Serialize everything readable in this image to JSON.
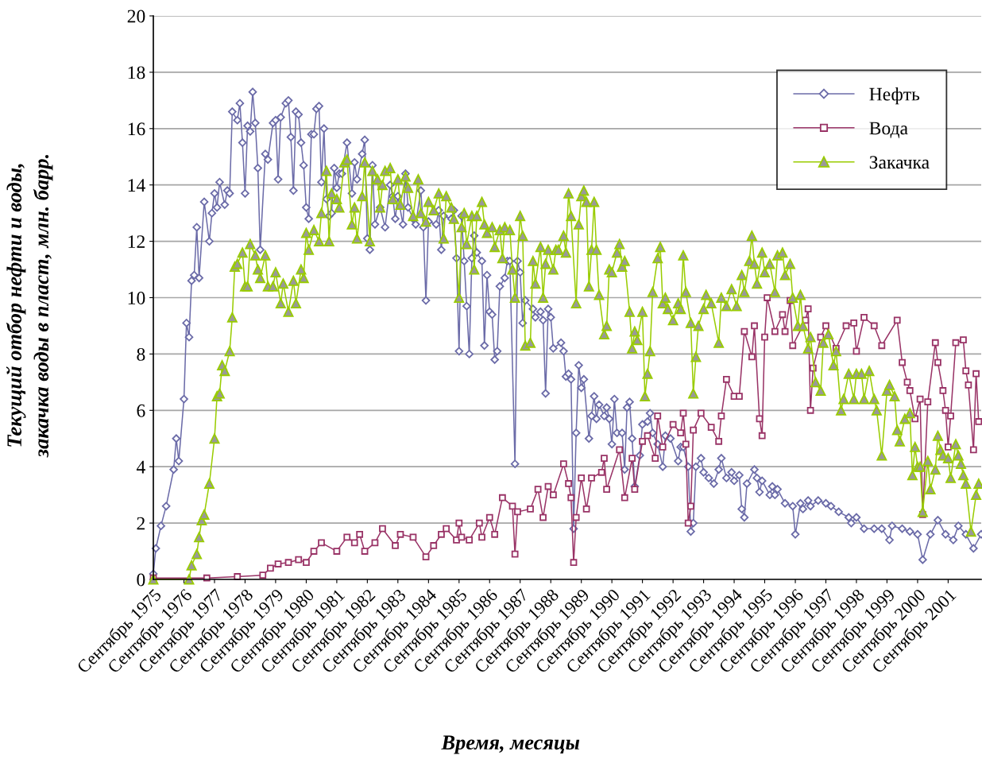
{
  "chart_data": {
    "type": "line",
    "xlabel": "Время, месяцы",
    "ylabel": "Текущий отбор нефти и воды,\nзакачка воды в пласт, млн. барр.",
    "xlim": [
      "1975-09",
      "2002-10"
    ],
    "ylim": [
      0,
      20
    ],
    "yticks": [
      0,
      2,
      4,
      6,
      8,
      10,
      12,
      14,
      16,
      18,
      20
    ],
    "xticks": [
      {
        "value": "1975-09",
        "label": "Сентябрь 1975"
      },
      {
        "value": "1976-09",
        "label": "Сентябрь 1976"
      },
      {
        "value": "1977-09",
        "label": "Сентябрь 1977"
      },
      {
        "value": "1978-09",
        "label": "Сентябрь 1978"
      },
      {
        "value": "1979-09",
        "label": "Сентябрь 1979"
      },
      {
        "value": "1980-09",
        "label": "Сентябрь 1980"
      },
      {
        "value": "1981-09",
        "label": "Сентябрь 1981"
      },
      {
        "value": "1982-09",
        "label": "Сентябрь 1982"
      },
      {
        "value": "1983-09",
        "label": "Сентябрь 1983"
      },
      {
        "value": "1984-09",
        "label": "Сентябрь 1984"
      },
      {
        "value": "1985-09",
        "label": "Сентябрь 1985"
      },
      {
        "value": "1986-09",
        "label": "Сентябрь 1986"
      },
      {
        "value": "1987-09",
        "label": "Сентябрь 1987"
      },
      {
        "value": "1988-09",
        "label": "Сентябрь 1988"
      },
      {
        "value": "1989-09",
        "label": "Сентябрь 1989"
      },
      {
        "value": "1990-09",
        "label": "Сентябрь 1990"
      },
      {
        "value": "1991-09",
        "label": "Сентябрь 1991"
      },
      {
        "value": "1992-09",
        "label": "Сентябрь 1992"
      },
      {
        "value": "1993-09",
        "label": "Сентябрь 1993"
      },
      {
        "value": "1994-09",
        "label": "Сентябрь 1994"
      },
      {
        "value": "1995-09",
        "label": "Сентябрь 1995"
      },
      {
        "value": "1996-09",
        "label": "Сентябрь 1996"
      },
      {
        "value": "1997-09",
        "label": "Сентябрь 1997"
      },
      {
        "value": "1998-09",
        "label": "Сентябрь 1998"
      },
      {
        "value": "1999-09",
        "label": "Сентябрь 1999"
      },
      {
        "value": "2000-09",
        "label": "Сентябрь 2000"
      },
      {
        "value": "2001-09",
        "label": "Сентябрь 2001"
      }
    ],
    "grid": "y",
    "legend": "top right",
    "line_style": "solid",
    "series": [
      {
        "name": "Нефть",
        "color": "#6b6ba8",
        "marker": "diamond",
        "x": [
          "1975-09",
          "1975-10",
          "1975-12",
          "1976-02",
          "1976-05",
          "1976-06",
          "1976-07",
          "1976-09",
          "1976-10",
          "1976-11",
          "1976-12",
          "1977-01",
          "1977-02",
          "1977-03",
          "1977-05",
          "1977-07",
          "1977-08",
          "1977-09",
          "1977-10",
          "1977-11",
          "1978-01",
          "1978-02",
          "1978-03",
          "1978-04",
          "1978-06",
          "1978-07",
          "1978-08",
          "1978-09",
          "1978-10",
          "1978-11",
          "1978-12",
          "1979-01",
          "1979-02",
          "1979-03",
          "1979-05",
          "1979-06",
          "1979-08",
          "1979-09",
          "1979-10",
          "1979-11",
          "1980-01",
          "1980-02",
          "1980-03",
          "1980-04",
          "1980-05",
          "1980-06",
          "1980-07",
          "1980-08",
          "1980-09",
          "1980-10",
          "1980-11",
          "1980-12",
          "1981-01",
          "1981-02",
          "1981-03",
          "1981-04",
          "1981-05",
          "1981-06",
          "1981-07",
          "1981-08",
          "1981-09",
          "1981-10",
          "1981-11",
          "1982-01",
          "1982-03",
          "1982-04",
          "1982-05",
          "1982-07",
          "1982-08",
          "1982-09",
          "1982-10",
          "1982-11",
          "1982-12",
          "1983-02",
          "1983-04",
          "1983-06",
          "1983-07",
          "1983-08",
          "1983-09",
          "1983-11",
          "1983-12",
          "1984-01",
          "1984-03",
          "1984-04",
          "1984-06",
          "1984-07",
          "1984-08",
          "1984-09",
          "1984-12",
          "1985-01",
          "1985-02",
          "1985-03",
          "1985-06",
          "1985-07",
          "1985-08",
          "1985-09",
          "1985-10",
          "1985-11",
          "1985-12",
          "1986-01",
          "1986-02",
          "1986-03",
          "1986-04",
          "1986-06",
          "1986-07",
          "1986-08",
          "1986-09",
          "1986-10",
          "1986-11",
          "1986-12",
          "1987-01",
          "1987-03",
          "1987-04",
          "1987-05",
          "1987-07",
          "1987-08",
          "1987-09",
          "1987-10",
          "1987-11",
          "1988-02",
          "1988-03",
          "1988-05",
          "1988-06",
          "1988-07",
          "1988-08",
          "1988-09",
          "1988-10",
          "1989-01",
          "1989-02",
          "1989-03",
          "1989-04",
          "1989-05",
          "1989-06",
          "1989-07",
          "1989-08",
          "1989-09",
          "1989-10",
          "1989-12",
          "1990-01",
          "1990-02",
          "1990-03",
          "1990-04",
          "1990-06",
          "1990-07",
          "1990-08",
          "1990-09",
          "1990-10",
          "1990-11",
          "1991-01",
          "1991-02",
          "1991-03",
          "1991-04",
          "1991-05",
          "1991-06",
          "1991-08",
          "1991-09",
          "1991-11",
          "1991-12",
          "1992-01",
          "1992-03",
          "1992-05",
          "1992-06",
          "1992-08",
          "1992-11",
          "1992-12",
          "1993-01",
          "1993-03",
          "1993-04",
          "1993-05",
          "1993-06",
          "1993-08",
          "1993-09",
          "1993-11",
          "1994-01",
          "1994-03",
          "1994-04",
          "1994-06",
          "1994-08",
          "1994-09",
          "1994-11",
          "1994-12",
          "1995-01",
          "1995-02",
          "1995-05",
          "1995-06",
          "1995-07",
          "1995-08",
          "1995-11",
          "1995-12",
          "1996-01",
          "1996-02",
          "1996-05",
          "1996-08",
          "1996-09",
          "1996-11",
          "1996-12",
          "1997-02",
          "1997-03",
          "1997-06",
          "1997-09",
          "1997-11",
          "1998-02",
          "1998-06",
          "1998-07",
          "1998-09",
          "1998-12",
          "1999-04",
          "1999-07",
          "1999-10",
          "1999-11",
          "2000-03",
          "2000-06",
          "2000-09",
          "2000-11",
          "2001-02",
          "2001-05",
          "2001-08",
          "2001-11",
          "2002-01",
          "2002-04",
          "2002-07",
          "2002-10"
        ],
        "values": [
          0.2,
          1.1,
          1.9,
          2.6,
          3.9,
          5.0,
          4.2,
          6.4,
          9.1,
          8.6,
          10.6,
          10.8,
          12.5,
          10.7,
          13.4,
          12.0,
          13.0,
          13.7,
          13.2,
          14.1,
          13.3,
          13.8,
          13.7,
          16.6,
          16.3,
          16.9,
          15.5,
          13.7,
          16.1,
          15.9,
          17.3,
          16.2,
          14.6,
          11.7,
          15.1,
          14.9,
          16.2,
          16.3,
          14.2,
          16.4,
          16.9,
          17.0,
          15.7,
          13.8,
          16.6,
          16.5,
          15.5,
          14.7,
          13.2,
          12.8,
          15.8,
          15.8,
          16.7,
          16.8,
          14.1,
          16.0,
          13.5,
          12.9,
          13.0,
          14.6,
          13.9,
          14.4,
          14.4,
          15.5,
          13.7,
          14.8,
          14.2,
          15.1,
          15.6,
          12.1,
          11.7,
          14.7,
          12.6,
          13.2,
          12.5,
          14.0,
          13.6,
          12.8,
          13.6,
          12.6,
          14.4,
          13.2,
          12.8,
          12.6,
          13.8,
          12.5,
          9.9,
          12.7,
          12.6,
          13.1,
          11.7,
          12.9,
          12.8,
          13.1,
          11.4,
          8.1,
          12.9,
          11.3,
          9.7,
          8.0,
          11.4,
          12.2,
          11.6,
          11.3,
          8.3,
          10.8,
          9.5,
          9.4,
          7.8,
          8.1,
          10.4,
          10.7,
          11.3,
          11.3,
          4.1,
          11.3,
          10.9,
          9.1,
          9.9,
          9.6,
          9.3,
          9.5,
          9.2,
          6.6,
          9.6,
          9.3,
          8.2,
          8.4,
          8.1,
          7.2,
          7.3,
          7.1,
          1.8,
          5.2,
          7.6,
          6.8,
          7.1,
          5.0,
          5.8,
          6.5,
          5.7,
          6.2,
          5.8,
          6.1,
          5.7,
          4.8,
          6.4,
          5.2,
          5.2,
          3.9,
          6.1,
          6.3,
          5.0,
          3.3,
          4.4,
          5.5,
          5.6,
          5.9,
          5.2,
          4.8,
          4.0,
          5.1,
          5.0,
          4.2,
          4.7,
          4.7,
          4.0,
          1.7,
          2.0,
          4.0,
          4.3,
          3.8,
          3.6,
          3.4,
          3.9,
          4.3,
          3.6,
          3.8,
          3.5,
          3.7,
          2.5,
          2.2,
          3.4,
          3.9,
          3.6,
          3.1,
          3.5,
          3.0,
          3.3,
          3.0,
          3.2,
          2.7,
          2.6,
          1.6,
          2.7,
          2.5,
          2.8,
          2.6,
          2.8,
          2.7,
          2.6,
          2.4,
          2.2,
          2.0,
          2.2,
          1.8,
          1.8,
          1.8,
          1.4,
          1.9,
          1.8,
          1.7,
          1.6,
          0.7,
          1.6,
          2.1,
          1.6,
          1.4,
          1.9,
          1.6,
          1.1,
          1.6
        ]
      },
      {
        "name": "Вода",
        "color": "#993366",
        "marker": "square",
        "x": [
          "1975-09",
          "1977-06",
          "1978-06",
          "1979-04",
          "1979-07",
          "1979-10",
          "1980-02",
          "1980-06",
          "1980-09",
          "1980-12",
          "1981-03",
          "1981-09",
          "1982-01",
          "1982-04",
          "1982-06",
          "1982-08",
          "1982-12",
          "1983-03",
          "1983-08",
          "1983-10",
          "1984-03",
          "1984-08",
          "1984-11",
          "1985-02",
          "1985-04",
          "1985-08",
          "1985-09",
          "1985-10",
          "1986-01",
          "1986-05",
          "1986-06",
          "1986-09",
          "1986-11",
          "1987-02",
          "1987-06",
          "1987-07",
          "1987-08",
          "1988-01",
          "1988-04",
          "1988-06",
          "1988-08",
          "1988-10",
          "1989-02",
          "1989-04",
          "1989-05",
          "1989-06",
          "1989-07",
          "1989-09",
          "1989-11",
          "1990-01",
          "1990-05",
          "1990-06",
          "1990-07",
          "1990-12",
          "1991-02",
          "1991-05",
          "1991-06",
          "1991-09",
          "1991-11",
          "1992-02",
          "1992-03",
          "1992-05",
          "1992-09",
          "1992-12",
          "1993-01",
          "1993-02",
          "1993-03",
          "1993-04",
          "1993-05",
          "1993-08",
          "1993-12",
          "1994-03",
          "1994-04",
          "1994-06",
          "1994-09",
          "1994-11",
          "1995-01",
          "1995-04",
          "1995-05",
          "1995-07",
          "1995-08",
          "1995-09",
          "1995-10",
          "1996-01",
          "1996-04",
          "1996-05",
          "1996-07",
          "1996-08",
          "1997-01",
          "1997-02",
          "1997-03",
          "1997-04",
          "1997-07",
          "1997-09",
          "1998-01",
          "1998-05",
          "1998-08",
          "1998-09",
          "1998-12",
          "1999-04",
          "1999-07",
          "2000-01",
          "2000-03",
          "2000-05",
          "2000-06",
          "2000-08",
          "2000-10",
          "2000-11",
          "2001-01",
          "2001-04",
          "2001-05",
          "2001-07",
          "2001-08",
          "2001-09",
          "2001-10",
          "2001-12",
          "2002-03",
          "2002-04",
          "2002-05",
          "2002-07",
          "2002-08",
          "2002-09"
        ],
        "values": [
          0.05,
          0.05,
          0.1,
          0.15,
          0.4,
          0.55,
          0.6,
          0.7,
          0.6,
          1.0,
          1.3,
          1.0,
          1.5,
          1.3,
          1.6,
          1.0,
          1.3,
          1.8,
          1.2,
          1.6,
          1.5,
          0.8,
          1.2,
          1.6,
          1.8,
          1.4,
          2.0,
          1.5,
          1.4,
          2.0,
          1.5,
          2.2,
          1.6,
          2.9,
          2.6,
          0.9,
          2.4,
          2.5,
          3.2,
          2.2,
          3.3,
          3.0,
          4.1,
          3.4,
          2.9,
          0.6,
          2.2,
          3.6,
          2.5,
          3.6,
          3.8,
          4.3,
          3.2,
          4.6,
          2.9,
          4.3,
          3.2,
          4.9,
          5.1,
          4.3,
          5.8,
          4.7,
          5.5,
          5.2,
          5.9,
          4.8,
          2.0,
          2.6,
          5.3,
          5.9,
          5.4,
          4.9,
          5.8,
          7.1,
          6.5,
          6.5,
          8.8,
          7.9,
          9.0,
          5.7,
          5.1,
          8.6,
          10.0,
          8.8,
          9.4,
          8.8,
          9.9,
          8.3,
          9.2,
          9.6,
          6.0,
          7.5,
          8.6,
          9.0,
          8.2,
          9.0,
          9.1,
          8.1,
          9.3,
          9.0,
          8.3,
          9.2,
          7.7,
          7.0,
          6.7,
          5.7,
          6.4,
          2.3,
          6.3,
          8.4,
          7.7,
          6.7,
          6.0,
          4.7,
          5.8,
          8.4,
          8.5,
          7.4,
          6.9,
          4.6,
          7.3,
          5.6
        ]
      },
      {
        "name": "Закачка",
        "color": "#99cc00",
        "marker": "triangle",
        "x": [
          "1975-09",
          "1976-11",
          "1976-12",
          "1977-02",
          "1977-03",
          "1977-04",
          "1977-05",
          "1977-07",
          "1977-09",
          "1977-10",
          "1977-11",
          "1977-12",
          "1978-01",
          "1978-03",
          "1978-04",
          "1978-05",
          "1978-06",
          "1978-08",
          "1978-09",
          "1978-10",
          "1978-11",
          "1979-01",
          "1979-02",
          "1979-03",
          "1979-05",
          "1979-06",
          "1979-08",
          "1979-09",
          "1979-11",
          "1979-12",
          "1980-02",
          "1980-04",
          "1980-05",
          "1980-07",
          "1980-08",
          "1980-09",
          "1980-10",
          "1980-12",
          "1981-02",
          "1981-03",
          "1981-05",
          "1981-06",
          "1981-07",
          "1981-09",
          "1981-10",
          "1981-12",
          "1982-01",
          "1982-03",
          "1982-04",
          "1982-05",
          "1982-07",
          "1982-08",
          "1982-10",
          "1982-11",
          "1983-01",
          "1983-02",
          "1983-03",
          "1983-04",
          "1983-06",
          "1983-07",
          "1983-09",
          "1983-10",
          "1983-12",
          "1984-01",
          "1984-03",
          "1984-05",
          "1984-06",
          "1984-08",
          "1984-09",
          "1984-11",
          "1985-01",
          "1985-03",
          "1985-04",
          "1985-06",
          "1985-07",
          "1985-09",
          "1985-10",
          "1985-11",
          "1985-12",
          "1986-02",
          "1986-03",
          "1986-04",
          "1986-06",
          "1986-07",
          "1986-08",
          "1986-10",
          "1986-11",
          "1987-01",
          "1987-02",
          "1987-03",
          "1987-05",
          "1987-06",
          "1987-07",
          "1987-09",
          "1987-10",
          "1987-11",
          "1988-01",
          "1988-02",
          "1988-03",
          "1988-05",
          "1988-06",
          "1988-07",
          "1988-08",
          "1988-10",
          "1988-11",
          "1988-12",
          "1989-02",
          "1989-03",
          "1989-04",
          "1989-05",
          "1989-07",
          "1989-08",
          "1989-09",
          "1989-10",
          "1989-11",
          "1989-12",
          "1990-01",
          "1990-02",
          "1990-03",
          "1990-04",
          "1990-06",
          "1990-07",
          "1990-08",
          "1990-09",
          "1990-11",
          "1990-12",
          "1991-01",
          "1991-02",
          "1991-04",
          "1991-05",
          "1991-06",
          "1991-07",
          "1991-09",
          "1991-10",
          "1991-11",
          "1991-12",
          "1992-01",
          "1992-03",
          "1992-04",
          "1992-05",
          "1992-06",
          "1992-07",
          "1992-09",
          "1992-11",
          "1992-12",
          "1993-01",
          "1993-02",
          "1993-04",
          "1993-05",
          "1993-06",
          "1993-07",
          "1993-09",
          "1993-10",
          "1993-12",
          "1994-03",
          "1994-04",
          "1994-06",
          "1994-08",
          "1994-10",
          "1994-12",
          "1995-01",
          "1995-03",
          "1995-04",
          "1995-05",
          "1995-06",
          "1995-08",
          "1995-09",
          "1995-11",
          "1996-01",
          "1996-02",
          "1996-04",
          "1996-05",
          "1996-07",
          "1996-08",
          "1996-10",
          "1996-11",
          "1996-12",
          "1997-02",
          "1997-03",
          "1997-05",
          "1997-07",
          "1997-08",
          "1997-10",
          "1997-12",
          "1998-01",
          "1998-03",
          "1998-04",
          "1998-06",
          "1998-08",
          "1998-09",
          "1998-11",
          "1998-12",
          "1999-02",
          "1999-04",
          "1999-05",
          "1999-07",
          "1999-09",
          "1999-10",
          "1999-12",
          "2000-01",
          "2000-02",
          "2000-04",
          "2000-06",
          "2000-07",
          "2000-08",
          "2000-09",
          "2000-10",
          "2000-11",
          "2001-01",
          "2001-02",
          "2001-04",
          "2001-05",
          "2001-06",
          "2001-07",
          "2001-09",
          "2001-10",
          "2001-12",
          "2002-01",
          "2002-02",
          "2002-03",
          "2002-04",
          "2002-06",
          "2002-08",
          "2002-09"
        ],
        "values": [
          0,
          0,
          0.5,
          0.9,
          1.5,
          2.1,
          2.3,
          3.4,
          5.0,
          6.5,
          6.6,
          7.6,
          7.4,
          8.1,
          9.3,
          11.1,
          11.2,
          11.6,
          10.4,
          10.4,
          11.9,
          11.5,
          11.0,
          10.7,
          11.5,
          10.4,
          10.4,
          10.9,
          9.8,
          10.5,
          9.5,
          10.6,
          9.8,
          11.0,
          10.7,
          12.3,
          11.7,
          12.4,
          12.0,
          13.0,
          14.5,
          12.0,
          13.7,
          13.5,
          13.2,
          14.8,
          14.9,
          12.6,
          13.2,
          12.1,
          13.6,
          14.8,
          12.0,
          14.5,
          14.2,
          13.2,
          14.0,
          14.5,
          14.6,
          13.5,
          14.2,
          13.3,
          14.3,
          13.9,
          12.9,
          14.2,
          13.0,
          12.7,
          13.4,
          13.1,
          13.7,
          12.1,
          13.6,
          13.2,
          12.8,
          10.0,
          12.5,
          13.0,
          11.9,
          12.9,
          11.0,
          12.9,
          13.4,
          12.6,
          12.3,
          12.5,
          11.8,
          12.4,
          11.4,
          12.5,
          12.4,
          11.0,
          10.0,
          12.9,
          12.2,
          8.3,
          8.4,
          11.3,
          10.5,
          11.8,
          10.0,
          11.2,
          11.7,
          11.0,
          11.7,
          11.7,
          12.2,
          11.6,
          13.7,
          12.9,
          9.8,
          12.6,
          13.6,
          13.8,
          13.4,
          10.4,
          11.7,
          13.4,
          11.7,
          10.1,
          8.7,
          9.0,
          11.0,
          10.9,
          11.6,
          11.9,
          11.1,
          11.3,
          9.5,
          8.2,
          8.8,
          8.5,
          9.5,
          6.5,
          7.3,
          8.1,
          10.2,
          11.4,
          11.8,
          9.8,
          10.0,
          9.6,
          9.2,
          9.8,
          9.6,
          11.5,
          10.2,
          9.1,
          6.6,
          7.9,
          9.0,
          9.6,
          10.1,
          9.8,
          8.4,
          10.0,
          9.7,
          10.3,
          9.7,
          10.8,
          10.2,
          11.3,
          12.2,
          11.2,
          10.5,
          11.6,
          10.9,
          11.2,
          10.2,
          11.5,
          11.6,
          10.8,
          11.2,
          10.0,
          9.0,
          10.1,
          9.0,
          8.2,
          8.6,
          7.0,
          6.7,
          8.4,
          8.7,
          7.6,
          8.1,
          6.0,
          6.4,
          7.3,
          6.4,
          7.3,
          7.3,
          6.4,
          7.4,
          6.4,
          6.0,
          4.4,
          6.7,
          6.9,
          6.5,
          5.3,
          4.9,
          5.7,
          5.9,
          3.7,
          4.7,
          4.0,
          4.0,
          2.4,
          4.2,
          3.2,
          3.9,
          5.1,
          4.6,
          4.4,
          4.3,
          3.6,
          4.8,
          4.4,
          4.1,
          3.7,
          3.4,
          1.7,
          3.0,
          3.4
        ]
      }
    ]
  }
}
